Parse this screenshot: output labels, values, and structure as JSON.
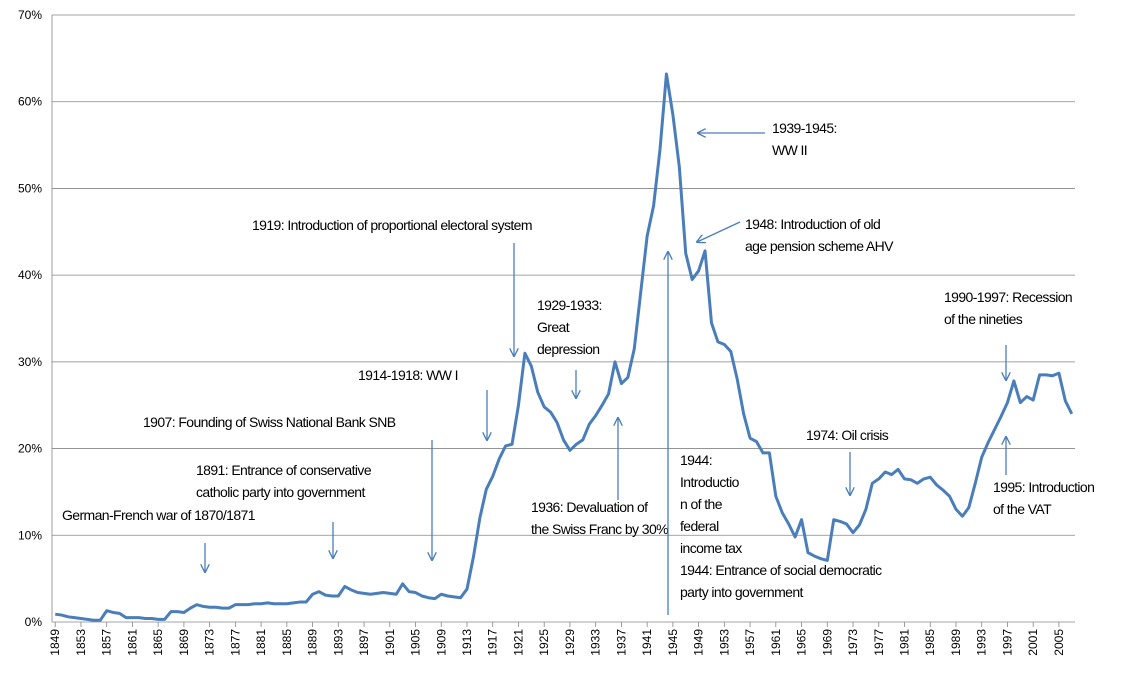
{
  "chart_data": {
    "type": "line",
    "color": "#4a7ebb",
    "grid": true,
    "xlim": [
      1848.5,
      2007.5
    ],
    "ylim": [
      0,
      70
    ],
    "yticks": [
      {
        "value": 0,
        "label": "0%"
      },
      {
        "value": 10,
        "label": "10%"
      },
      {
        "value": 20,
        "label": "20%"
      },
      {
        "value": 30,
        "label": "30%"
      },
      {
        "value": 40,
        "label": "40%"
      },
      {
        "value": 50,
        "label": "50%"
      },
      {
        "value": 60,
        "label": "60%"
      },
      {
        "value": 70,
        "label": "70%"
      }
    ],
    "xticks": [
      1849,
      1853,
      1857,
      1861,
      1865,
      1869,
      1873,
      1877,
      1881,
      1885,
      1889,
      1893,
      1897,
      1901,
      1905,
      1909,
      1913,
      1917,
      1921,
      1925,
      1929,
      1933,
      1937,
      1941,
      1945,
      1949,
      1953,
      1957,
      1961,
      1965,
      1969,
      1973,
      1977,
      1981,
      1985,
      1989,
      1993,
      1997,
      2001,
      2005
    ],
    "x": [
      1849,
      1850,
      1851,
      1852,
      1853,
      1854,
      1855,
      1856,
      1857,
      1858,
      1859,
      1860,
      1861,
      1862,
      1863,
      1864,
      1865,
      1866,
      1867,
      1868,
      1869,
      1870,
      1871,
      1872,
      1873,
      1874,
      1875,
      1876,
      1877,
      1878,
      1879,
      1880,
      1881,
      1882,
      1883,
      1884,
      1885,
      1886,
      1887,
      1888,
      1889,
      1890,
      1891,
      1892,
      1893,
      1894,
      1895,
      1896,
      1897,
      1898,
      1899,
      1900,
      1901,
      1902,
      1903,
      1904,
      1905,
      1906,
      1907,
      1908,
      1909,
      1910,
      1911,
      1912,
      1913,
      1914,
      1915,
      1916,
      1917,
      1918,
      1919,
      1920,
      1921,
      1922,
      1923,
      1924,
      1925,
      1926,
      1927,
      1928,
      1929,
      1930,
      1931,
      1932,
      1933,
      1934,
      1935,
      1936,
      1937,
      1938,
      1939,
      1940,
      1941,
      1942,
      1943,
      1944,
      1945,
      1946,
      1947,
      1948,
      1949,
      1950,
      1951,
      1952,
      1953,
      1954,
      1955,
      1956,
      1957,
      1958,
      1959,
      1960,
      1961,
      1962,
      1963,
      1964,
      1965,
      1966,
      1967,
      1968,
      1969,
      1970,
      1971,
      1972,
      1973,
      1974,
      1975,
      1976,
      1977,
      1978,
      1979,
      1980,
      1981,
      1982,
      1983,
      1984,
      1985,
      1986,
      1987,
      1988,
      1989,
      1990,
      1991,
      1992,
      1993,
      1994,
      1995,
      1996,
      1997,
      1998,
      1999,
      2000,
      2001,
      2002,
      2003,
      2004,
      2005,
      2006,
      2007
    ],
    "values": [
      0.9,
      0.8,
      0.6,
      0.5,
      0.4,
      0.3,
      0.2,
      0.2,
      1.3,
      1.1,
      1.0,
      0.5,
      0.5,
      0.5,
      0.4,
      0.4,
      0.3,
      0.3,
      1.2,
      1.2,
      1.1,
      1.6,
      2.0,
      1.8,
      1.7,
      1.7,
      1.6,
      1.6,
      2.0,
      2.0,
      2.0,
      2.1,
      2.1,
      2.2,
      2.1,
      2.1,
      2.1,
      2.2,
      2.3,
      2.3,
      3.2,
      3.5,
      3.1,
      3.0,
      3.0,
      4.1,
      3.7,
      3.4,
      3.3,
      3.2,
      3.3,
      3.4,
      3.3,
      3.2,
      4.4,
      3.5,
      3.4,
      3.0,
      2.8,
      2.7,
      3.2,
      3.0,
      2.9,
      2.8,
      3.8,
      7.5,
      12.0,
      15.3,
      16.8,
      18.8,
      20.3,
      20.5,
      25.0,
      31.0,
      29.5,
      26.5,
      24.8,
      24.2,
      23.0,
      21.0,
      19.8,
      20.5,
      21.0,
      22.8,
      23.8,
      25.0,
      26.3,
      30.0,
      27.5,
      28.2,
      31.5,
      38.0,
      44.5,
      48.0,
      54.5,
      63.2,
      58.5,
      52.5,
      42.5,
      39.5,
      40.5,
      42.8,
      34.5,
      32.3,
      32.0,
      31.2,
      28.0,
      24.0,
      21.2,
      20.8,
      19.5,
      19.5,
      14.5,
      12.6,
      11.3,
      9.8,
      11.8,
      8.0,
      7.6,
      7.3,
      7.1,
      11.8,
      11.6,
      11.3,
      10.3,
      11.2,
      13.0,
      16.0,
      16.5,
      17.3,
      17.0,
      17.6,
      16.5,
      16.4,
      16.0,
      16.5,
      16.7,
      15.8,
      15.2,
      14.5,
      13.0,
      12.2,
      13.2,
      16.0,
      19.0,
      20.7,
      22.2,
      23.7,
      25.3,
      27.8,
      25.3,
      26.0,
      25.6,
      28.5,
      28.5,
      28.4,
      28.7,
      25.5,
      24.0
    ],
    "annotations": [
      [
        "German-French war of 1870/1871"
      ],
      [
        "1891: Entrance of conservative",
        "catholic party into government"
      ],
      [
        "1907: Founding of Swiss National Bank SNB"
      ],
      [
        "1914-1918: WW I"
      ],
      [
        "1919: Introduction of proportional electoral system"
      ],
      [
        "1929-1933:",
        "Great",
        "depression"
      ],
      [
        "1936: Devaluation of",
        "the Swiss Franc by 30%"
      ],
      [
        "1944:",
        "Introductio",
        "n of the",
        "federal",
        "income tax"
      ],
      [
        "1944: Entrance of social democratic",
        "party into government"
      ],
      [
        "1939-1945:",
        "WW II"
      ],
      [
        "1948: Introduction of old",
        "age pension scheme AHV"
      ],
      [
        "1974: Oil crisis"
      ],
      [
        "1990-1997: Recession",
        "of the nineties"
      ],
      [
        "1995: Introduction",
        "of the VAT"
      ]
    ]
  }
}
